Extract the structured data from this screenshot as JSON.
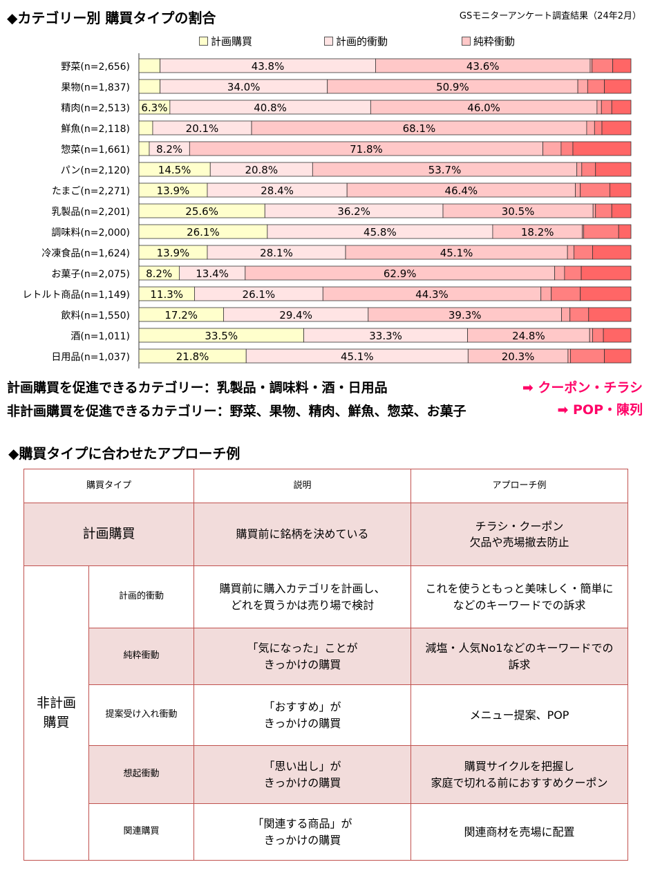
{
  "title": "◆カテゴリー別 購買タイプの割合",
  "survey_note": "GSモニターアンケート調査結果（24年2月）",
  "chart_data": {
    "type": "bar",
    "orientation": "horizontal-stacked-100",
    "legend": [
      "計画購買",
      "計画的衝動",
      "純粋衝動"
    ],
    "legend_placement": "top",
    "colors": {
      "plan": "#ffffcc",
      "planned_impulse": "#ffe4e4",
      "pure_impulse": "#ffc8c8",
      "seg4": "#ffa8a8",
      "seg5": "#ff8080",
      "seg6": "#ff6666",
      "border": "#333333"
    },
    "categories": [
      "野菜(n=2,656)",
      "果物(n=1,837)",
      "精肉(n=2,513)",
      "鮮魚(n=2,118)",
      "惣菜(n=1,661)",
      "パン(n=2,120)",
      "たまご(n=2,271)",
      "乳製品(n=2,201)",
      "調味料(n=2,000)",
      "冷凍食品(n=1,624)",
      "お菓子(n=2,075)",
      "レトルト商品(n=1,149)",
      "飲料(n=1,550)",
      "酒(n=1,011)",
      "日用品(n=1,037)"
    ],
    "segments": [
      [
        4.3,
        43.8,
        43.6,
        0.4,
        4.2,
        3.7
      ],
      [
        4.3,
        34.0,
        50.9,
        2.0,
        3.4,
        5.4
      ],
      [
        6.3,
        40.8,
        46.0,
        0.9,
        2.1,
        3.9
      ],
      [
        2.8,
        20.1,
        68.1,
        1.6,
        1.5,
        5.9
      ],
      [
        2.1,
        8.2,
        71.8,
        3.7,
        2.4,
        11.8
      ],
      [
        14.5,
        20.8,
        53.7,
        1.0,
        2.8,
        7.2
      ],
      [
        13.9,
        28.4,
        46.4,
        1.0,
        6.0,
        4.3
      ],
      [
        25.6,
        36.2,
        30.5,
        0.5,
        3.3,
        3.9
      ],
      [
        26.1,
        45.8,
        18.2,
        0.3,
        7.1,
        2.5
      ],
      [
        13.9,
        28.1,
        45.1,
        1.3,
        3.8,
        7.8
      ],
      [
        8.2,
        13.4,
        62.9,
        2.0,
        3.4,
        10.1
      ],
      [
        11.3,
        26.1,
        44.3,
        2.1,
        5.9,
        10.3
      ],
      [
        17.2,
        29.4,
        39.3,
        1.7,
        3.8,
        8.6
      ],
      [
        33.5,
        33.3,
        24.8,
        0.6,
        2.2,
        5.6
      ],
      [
        21.8,
        45.1,
        20.3,
        0.5,
        6.9,
        5.4
      ]
    ],
    "labels": [
      [
        "",
        "43.8%",
        "43.6%",
        "",
        "",
        ""
      ],
      [
        "",
        "34.0%",
        "50.9%",
        "",
        "",
        ""
      ],
      [
        "6.3%",
        "40.8%",
        "46.0%",
        "",
        "",
        ""
      ],
      [
        "",
        "20.1%",
        "68.1%",
        "",
        "",
        ""
      ],
      [
        "",
        "8.2%",
        "71.8%",
        "",
        "",
        ""
      ],
      [
        "14.5%",
        "20.8%",
        "53.7%",
        "",
        "",
        ""
      ],
      [
        "13.9%",
        "28.4%",
        "46.4%",
        "",
        "",
        ""
      ],
      [
        "25.6%",
        "36.2%",
        "30.5%",
        "",
        "",
        ""
      ],
      [
        "26.1%",
        "45.8%",
        "18.2%",
        "",
        "",
        ""
      ],
      [
        "13.9%",
        "28.1%",
        "45.1%",
        "",
        "",
        ""
      ],
      [
        "8.2%",
        "13.4%",
        "62.9%",
        "",
        "",
        ""
      ],
      [
        "11.3%",
        "26.1%",
        "44.3%",
        "",
        "",
        ""
      ],
      [
        "17.2%",
        "29.4%",
        "39.3%",
        "",
        "",
        ""
      ],
      [
        "33.5%",
        "33.3%",
        "24.8%",
        "",
        "",
        ""
      ],
      [
        "21.8%",
        "45.1%",
        "20.3%",
        "",
        "",
        ""
      ]
    ],
    "xlim": [
      0,
      100
    ],
    "grid": false
  },
  "summary": {
    "line1": "計画購買を促進できるカテゴリー：乳製品・調味料・酒・日用品",
    "line1_arrow": "➡ クーポン・チラシ",
    "line2": "非計画購買を促進できるカテゴリー：野菜、果物、精肉、鮮魚、惣菜、お菓子",
    "line2_arrow": "➡ POP・陳列"
  },
  "table_title": "◆購買タイプに合わせたアプローチ例",
  "table": {
    "headers": [
      "購買タイプ",
      "説明",
      "アプローチ例"
    ],
    "plan_row": {
      "type": "計画購買",
      "desc": "購買前に銘柄を決めている",
      "approach_1": "チラシ・クーポン",
      "approach_2": "欠品や売場撤去防止"
    },
    "group_label_1": "非計画",
    "group_label_2": "購買",
    "rows": [
      {
        "type": "計画的衝動",
        "desc_1": "購買前に購入カテゴリを計画し、",
        "desc_2": "どれを買うかは売り場で検討",
        "approach_1": "これを使うともっと美味しく・簡単に",
        "approach_2": "などのキーワードでの訴求"
      },
      {
        "type": "純粋衝動",
        "desc_1": "「気になった」ことが",
        "desc_2": "きっかけの購買",
        "approach_1": "減塩・人気No1などのキーワードでの",
        "approach_2": "訴求"
      },
      {
        "type": "提案受け入れ衝動",
        "desc_1": "「おすすめ」が",
        "desc_2": "きっかけの購買",
        "approach_1": "メニュー提案、POP",
        "approach_2": ""
      },
      {
        "type": "想起衝動",
        "desc_1": "「思い出し」が",
        "desc_2": "きっかけの購買",
        "approach_1": "購買サイクルを把握し",
        "approach_2": "家庭で切れる前におすすめクーポン"
      },
      {
        "type": "関連購買",
        "desc_1": "「関連する商品」が",
        "desc_2": "きっかけの購買",
        "approach_1": "関連商材を売場に配置",
        "approach_2": ""
      }
    ]
  }
}
